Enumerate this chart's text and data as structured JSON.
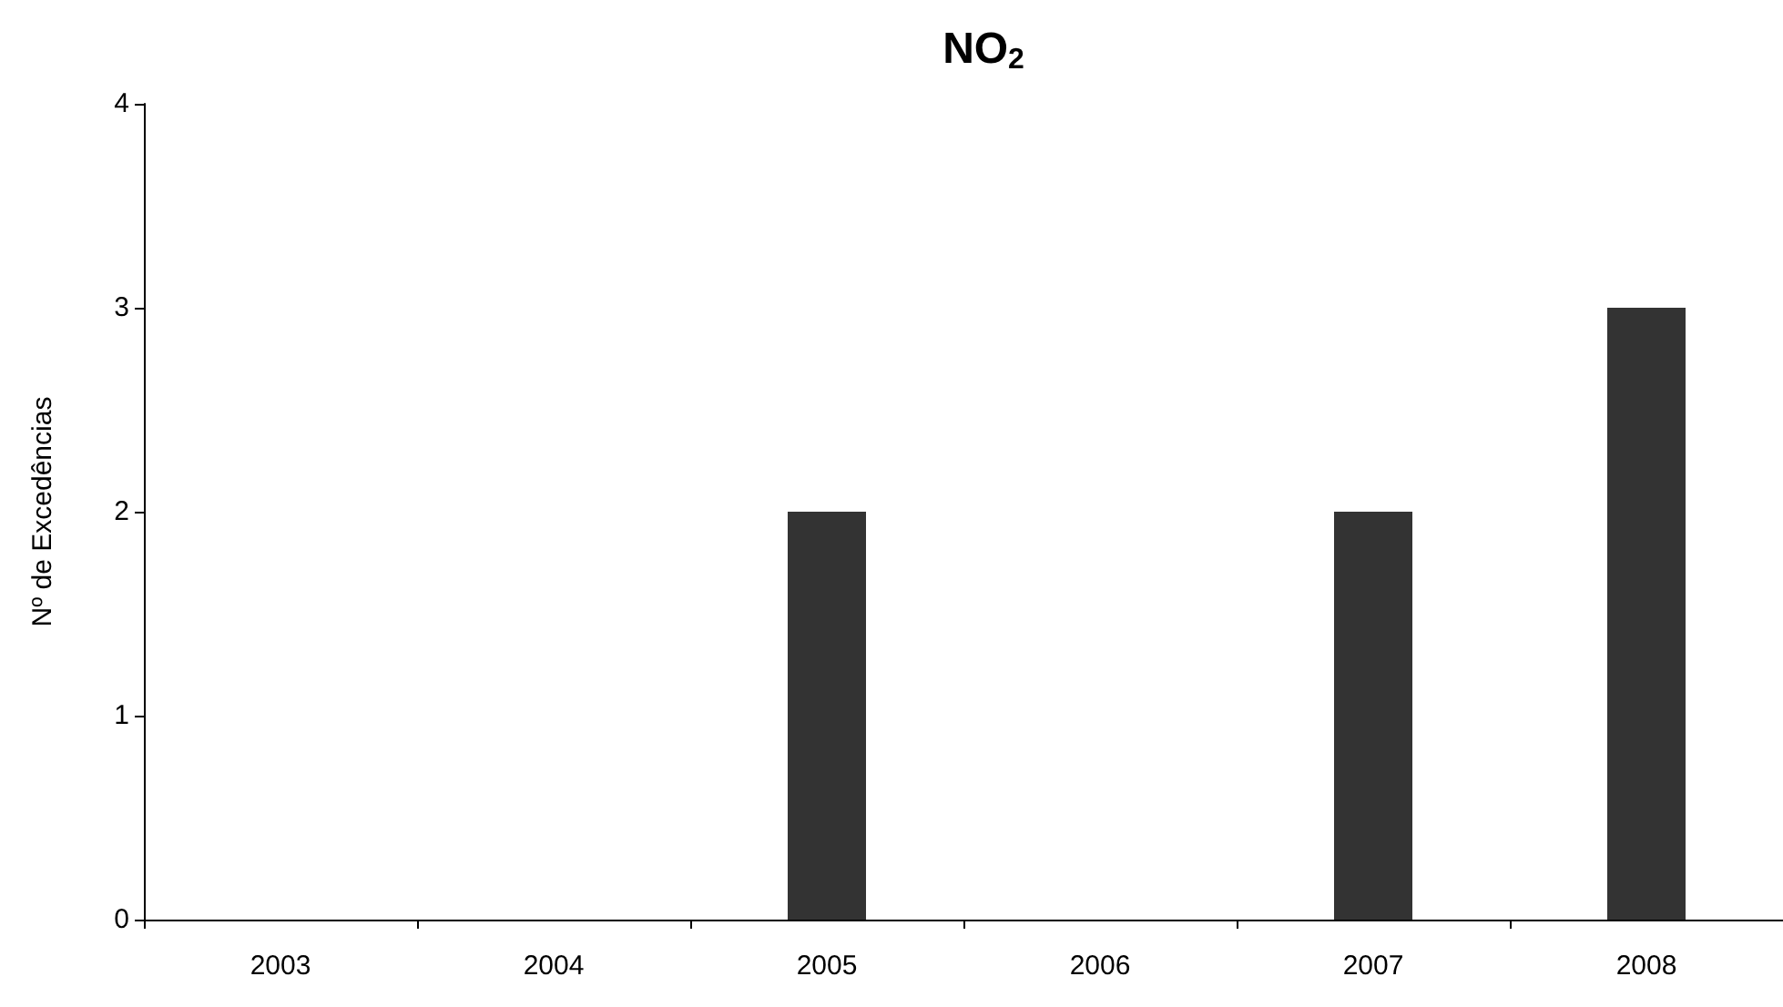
{
  "chart_data": {
    "type": "bar",
    "title": "NO$_{2}$",
    "ylabel": "Nº de Excedências",
    "categories": [
      "2003",
      "2004",
      "2005",
      "2006",
      "2007",
      "2008"
    ],
    "values": [
      0,
      0,
      2,
      0,
      2,
      3
    ],
    "color": "#333333",
    "ylim": [
      0,
      4
    ],
    "yticks": [
      0,
      1,
      2,
      3,
      4
    ],
    "grid": false
  }
}
